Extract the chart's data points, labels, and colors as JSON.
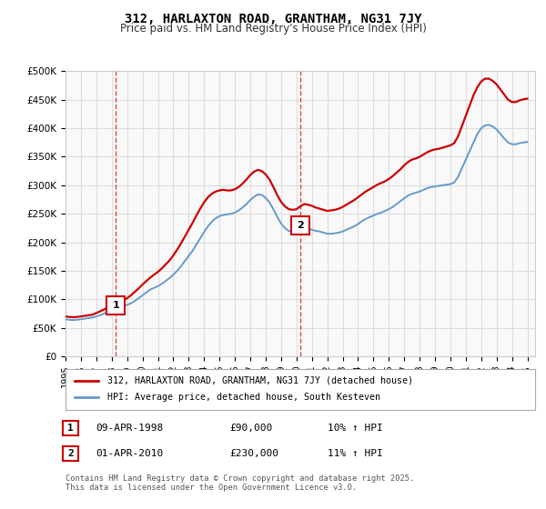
{
  "title": "312, HARLAXTON ROAD, GRANTHAM, NG31 7JY",
  "subtitle": "Price paid vs. HM Land Registry's House Price Index (HPI)",
  "background_color": "#ffffff",
  "plot_background": "#f9f9f9",
  "grid_color": "#dddddd",
  "red_line_color": "#cc0000",
  "blue_line_color": "#6699cc",
  "marker1_date_x": 1998.27,
  "marker1_y": 90000,
  "marker2_date_x": 2010.25,
  "marker2_y": 230000,
  "xmin": 1995.0,
  "xmax": 2025.5,
  "ymin": 0,
  "ymax": 500000,
  "yticks": [
    0,
    50000,
    100000,
    150000,
    200000,
    250000,
    300000,
    350000,
    400000,
    450000,
    500000
  ],
  "xtick_years": [
    1995,
    1996,
    1997,
    1998,
    1999,
    2000,
    2001,
    2002,
    2003,
    2004,
    2005,
    2006,
    2007,
    2008,
    2009,
    2010,
    2011,
    2012,
    2013,
    2014,
    2015,
    2016,
    2017,
    2018,
    2019,
    2020,
    2021,
    2022,
    2023,
    2024,
    2025
  ],
  "legend_line1": "312, HARLAXTON ROAD, GRANTHAM, NG31 7JY (detached house)",
  "legend_line2": "HPI: Average price, detached house, South Kesteven",
  "table_row1": [
    "1",
    "09-APR-1998",
    "£90,000",
    "10% ↑ HPI"
  ],
  "table_row2": [
    "2",
    "01-APR-2010",
    "£230,000",
    "11% ↑ HPI"
  ],
  "footer": "Contains HM Land Registry data © Crown copyright and database right 2025.\nThis data is licensed under the Open Government Licence v3.0.",
  "hpi_data_x": [
    1995.0,
    1995.25,
    1995.5,
    1995.75,
    1996.0,
    1996.25,
    1996.5,
    1996.75,
    1997.0,
    1997.25,
    1997.5,
    1997.75,
    1998.0,
    1998.25,
    1998.5,
    1998.75,
    1999.0,
    1999.25,
    1999.5,
    1999.75,
    2000.0,
    2000.25,
    2000.5,
    2000.75,
    2001.0,
    2001.25,
    2001.5,
    2001.75,
    2002.0,
    2002.25,
    2002.5,
    2002.75,
    2003.0,
    2003.25,
    2003.5,
    2003.75,
    2004.0,
    2004.25,
    2004.5,
    2004.75,
    2005.0,
    2005.25,
    2005.5,
    2005.75,
    2006.0,
    2006.25,
    2006.5,
    2006.75,
    2007.0,
    2007.25,
    2007.5,
    2007.75,
    2008.0,
    2008.25,
    2008.5,
    2008.75,
    2009.0,
    2009.25,
    2009.5,
    2009.75,
    2010.0,
    2010.25,
    2010.5,
    2010.75,
    2011.0,
    2011.25,
    2011.5,
    2011.75,
    2012.0,
    2012.25,
    2012.5,
    2012.75,
    2013.0,
    2013.25,
    2013.5,
    2013.75,
    2014.0,
    2014.25,
    2014.5,
    2014.75,
    2015.0,
    2015.25,
    2015.5,
    2015.75,
    2016.0,
    2016.25,
    2016.5,
    2016.75,
    2017.0,
    2017.25,
    2017.5,
    2017.75,
    2018.0,
    2018.25,
    2018.5,
    2018.75,
    2019.0,
    2019.25,
    2019.5,
    2019.75,
    2020.0,
    2020.25,
    2020.5,
    2020.75,
    2021.0,
    2021.25,
    2021.5,
    2021.75,
    2022.0,
    2022.25,
    2022.5,
    2022.75,
    2023.0,
    2023.25,
    2023.5,
    2023.75,
    2024.0,
    2024.25,
    2024.5,
    2024.75,
    2025.0
  ],
  "hpi_data_y": [
    65000,
    64000,
    63500,
    64000,
    65000,
    66000,
    67000,
    68000,
    70000,
    72000,
    75000,
    78000,
    81000,
    84000,
    86000,
    88000,
    90000,
    93000,
    97000,
    102000,
    107000,
    112000,
    117000,
    120000,
    123000,
    127000,
    132000,
    137000,
    143000,
    150000,
    158000,
    167000,
    176000,
    185000,
    196000,
    207000,
    218000,
    228000,
    236000,
    242000,
    246000,
    248000,
    249000,
    250000,
    252000,
    256000,
    261000,
    267000,
    274000,
    280000,
    284000,
    283000,
    278000,
    270000,
    258000,
    245000,
    233000,
    225000,
    220000,
    218000,
    218000,
    222000,
    225000,
    224000,
    222000,
    220000,
    219000,
    217000,
    215000,
    215000,
    216000,
    217000,
    219000,
    222000,
    225000,
    228000,
    232000,
    237000,
    241000,
    244000,
    247000,
    250000,
    252000,
    255000,
    258000,
    262000,
    267000,
    272000,
    277000,
    282000,
    285000,
    287000,
    289000,
    292000,
    295000,
    297000,
    298000,
    299000,
    300000,
    301000,
    302000,
    305000,
    315000,
    330000,
    345000,
    360000,
    375000,
    390000,
    400000,
    405000,
    406000,
    403000,
    398000,
    390000,
    382000,
    375000,
    372000,
    372000,
    374000,
    375000,
    376000
  ],
  "price_data_x": [
    1995.0,
    1995.25,
    1995.5,
    1995.75,
    1996.0,
    1996.25,
    1996.5,
    1996.75,
    1997.0,
    1997.25,
    1997.5,
    1997.75,
    1998.0,
    1998.25,
    1998.5,
    1998.75,
    1999.0,
    1999.25,
    1999.5,
    1999.75,
    2000.0,
    2000.25,
    2000.5,
    2000.75,
    2001.0,
    2001.25,
    2001.5,
    2001.75,
    2002.0,
    2002.25,
    2002.5,
    2002.75,
    2003.0,
    2003.25,
    2003.5,
    2003.75,
    2004.0,
    2004.25,
    2004.5,
    2004.75,
    2005.0,
    2005.25,
    2005.5,
    2005.75,
    2006.0,
    2006.25,
    2006.5,
    2006.75,
    2007.0,
    2007.25,
    2007.5,
    2007.75,
    2008.0,
    2008.25,
    2008.5,
    2008.75,
    2009.0,
    2009.25,
    2009.5,
    2009.75,
    2010.0,
    2010.25,
    2010.5,
    2010.75,
    2011.0,
    2011.25,
    2011.5,
    2011.75,
    2012.0,
    2012.25,
    2012.5,
    2012.75,
    2013.0,
    2013.25,
    2013.5,
    2013.75,
    2014.0,
    2014.25,
    2014.5,
    2014.75,
    2015.0,
    2015.25,
    2015.5,
    2015.75,
    2016.0,
    2016.25,
    2016.5,
    2016.75,
    2017.0,
    2017.25,
    2017.5,
    2017.75,
    2018.0,
    2018.25,
    2018.5,
    2018.75,
    2019.0,
    2019.25,
    2019.5,
    2019.75,
    2020.0,
    2020.25,
    2020.5,
    2020.75,
    2021.0,
    2021.25,
    2021.5,
    2021.75,
    2022.0,
    2022.25,
    2022.5,
    2022.75,
    2023.0,
    2023.25,
    2023.5,
    2023.75,
    2024.0,
    2024.25,
    2024.5,
    2024.75,
    2025.0
  ],
  "price_data_y": [
    70000,
    69000,
    68500,
    69000,
    70000,
    71000,
    72000,
    73000,
    76000,
    79000,
    82000,
    86000,
    90000,
    92000,
    95000,
    98000,
    102000,
    107000,
    113000,
    119000,
    126000,
    132000,
    138000,
    143000,
    148000,
    154000,
    161000,
    168000,
    177000,
    187000,
    198000,
    210000,
    222000,
    234000,
    247000,
    259000,
    270000,
    279000,
    285000,
    289000,
    291000,
    292000,
    291000,
    291000,
    293000,
    297000,
    303000,
    310000,
    318000,
    324000,
    327000,
    325000,
    319000,
    310000,
    297000,
    283000,
    271000,
    263000,
    258000,
    257000,
    258000,
    263000,
    267000,
    266000,
    264000,
    261000,
    259000,
    257000,
    255000,
    256000,
    257000,
    259000,
    262000,
    266000,
    270000,
    274000,
    279000,
    284000,
    289000,
    293000,
    297000,
    301000,
    304000,
    307000,
    311000,
    316000,
    322000,
    328000,
    335000,
    341000,
    345000,
    347000,
    350000,
    354000,
    358000,
    361000,
    363000,
    364000,
    366000,
    368000,
    370000,
    374000,
    386000,
    404000,
    422000,
    440000,
    458000,
    472000,
    482000,
    487000,
    487000,
    483000,
    477000,
    468000,
    459000,
    450000,
    446000,
    446000,
    449000,
    451000,
    452000
  ]
}
